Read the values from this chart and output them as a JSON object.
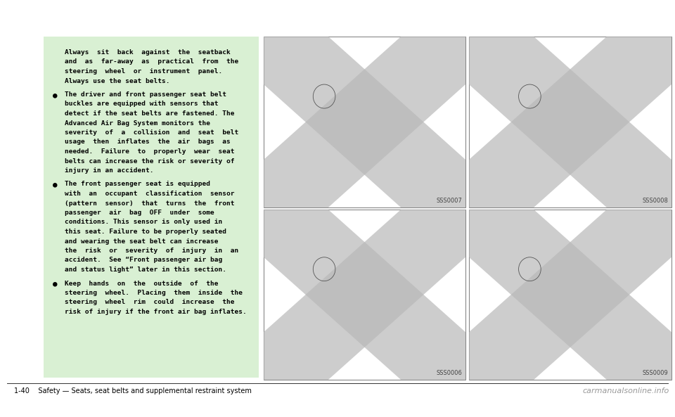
{
  "bg_color": "#ffffff",
  "green_box_color": "#d9f0d3",
  "text_color": "#000000",
  "footer_text": "1-40    Safety — Seats, seat belts and supplemental restraint system",
  "watermark": "carmanualsonline.info",
  "intro_lines": [
    "Always  sit  back  against  the  seatback",
    "and  as  far-away  as  practical  from  the",
    "steering  wheel  or  instrument  panel.",
    "Always use the seat belts."
  ],
  "bullet1_lines": [
    "The driver and front passenger seat belt",
    "buckles are equipped with sensors that",
    "detect if the seat belts are fastened. The",
    "Advanced Air Bag System monitors the",
    "severity  of  a  collision  and  seat  belt",
    "usage  then  inflates  the  air  bags  as",
    "needed.  Failure  to  properly  wear  seat",
    "belts can increase the risk or severity of",
    "injury in an accident."
  ],
  "bullet2_lines": [
    "The front passenger seat is equipped",
    "with  an  occupant  classification  sensor",
    "(pattern  sensor)  that  turns  the  front",
    "passenger  air  bag  OFF  under  some",
    "conditions. This sensor is only used in",
    "this seat. Failure to be properly seated",
    "and wearing the seat belt can increase",
    "the  risk  or  severity  of  injury  in  an",
    "accident.  See “Front passenger air bag",
    "and status light” later in this section."
  ],
  "bullet3_lines": [
    "Keep  hands  on  the  outside  of  the",
    "steering  wheel.  Placing  them  inside  the",
    "steering  wheel  rim  could  increase  the",
    "risk of injury if the front air bag inflates."
  ],
  "img_labels": [
    "SSS0007",
    "SSS0008",
    "SSS0006",
    "SSS0009"
  ],
  "panel_border_color": "#888888",
  "panel_bg_color": "#f8f8f8",
  "xband_color": "#b8b8b8",
  "xband_alpha": 0.7,
  "footer_line_color": "#333333",
  "watermark_color": "#999999"
}
